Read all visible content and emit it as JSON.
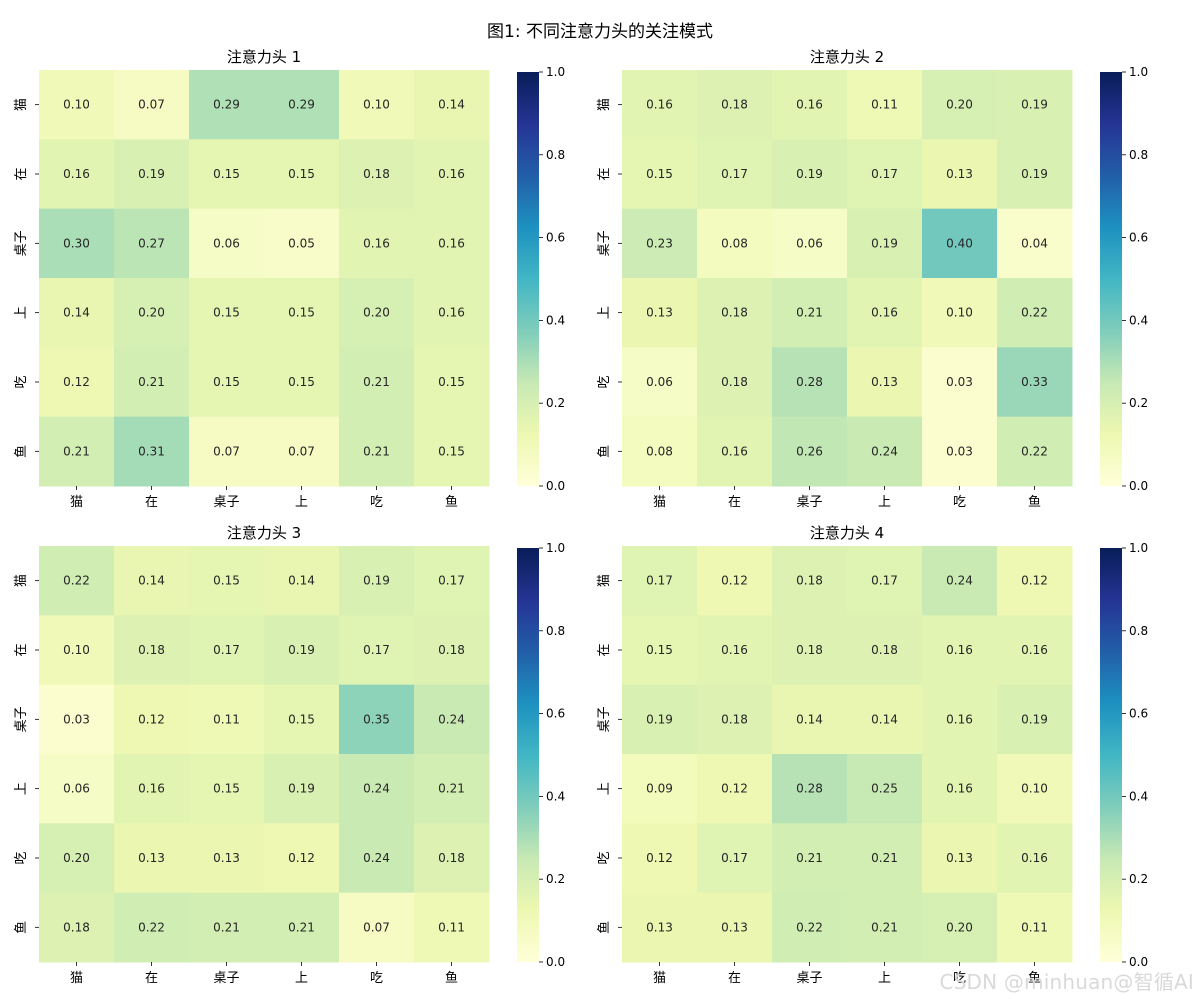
{
  "figure_title": "图1: 不同注意力头的关注模式",
  "watermark": "CSDN @minhuan@智循AI",
  "colormap": {
    "name": "YlGnBu",
    "stops": [
      "#ffffd9",
      "#edf8b1",
      "#c7e9b4",
      "#7fcdbb",
      "#41b6c4",
      "#1d91c0",
      "#225ea8",
      "#253494",
      "#081d58"
    ]
  },
  "chart_data": [
    {
      "type": "heatmap",
      "title": "注意力头 1",
      "x_labels": [
        "猫",
        "在",
        "桌子",
        "上",
        "吃",
        "鱼"
      ],
      "y_labels": [
        "猫",
        "在",
        "桌子",
        "上",
        "吃",
        "鱼"
      ],
      "vmin": 0,
      "vmax": 1,
      "colorbar_ticks": [
        "0.0",
        "0.2",
        "0.4",
        "0.6",
        "0.8",
        "1.0"
      ],
      "values": [
        [
          0.1,
          0.07,
          0.29,
          0.29,
          0.1,
          0.14
        ],
        [
          0.16,
          0.19,
          0.15,
          0.15,
          0.18,
          0.16
        ],
        [
          0.3,
          0.27,
          0.06,
          0.05,
          0.16,
          0.16
        ],
        [
          0.14,
          0.2,
          0.15,
          0.15,
          0.2,
          0.16
        ],
        [
          0.12,
          0.21,
          0.15,
          0.15,
          0.21,
          0.15
        ],
        [
          0.21,
          0.31,
          0.07,
          0.07,
          0.21,
          0.15
        ]
      ]
    },
    {
      "type": "heatmap",
      "title": "注意力头 2",
      "x_labels": [
        "猫",
        "在",
        "桌子",
        "上",
        "吃",
        "鱼"
      ],
      "y_labels": [
        "猫",
        "在",
        "桌子",
        "上",
        "吃",
        "鱼"
      ],
      "vmin": 0,
      "vmax": 1,
      "colorbar_ticks": [
        "0.0",
        "0.2",
        "0.4",
        "0.6",
        "0.8",
        "1.0"
      ],
      "values": [
        [
          0.16,
          0.18,
          0.16,
          0.11,
          0.2,
          0.19
        ],
        [
          0.15,
          0.17,
          0.19,
          0.17,
          0.13,
          0.19
        ],
        [
          0.23,
          0.08,
          0.06,
          0.19,
          0.4,
          0.04
        ],
        [
          0.13,
          0.18,
          0.21,
          0.16,
          0.1,
          0.22
        ],
        [
          0.06,
          0.18,
          0.28,
          0.13,
          0.03,
          0.33
        ],
        [
          0.08,
          0.16,
          0.26,
          0.24,
          0.03,
          0.22
        ]
      ]
    },
    {
      "type": "heatmap",
      "title": "注意力头 3",
      "x_labels": [
        "猫",
        "在",
        "桌子",
        "上",
        "吃",
        "鱼"
      ],
      "y_labels": [
        "猫",
        "在",
        "桌子",
        "上",
        "吃",
        "鱼"
      ],
      "vmin": 0,
      "vmax": 1,
      "colorbar_ticks": [
        "0.0",
        "0.2",
        "0.4",
        "0.6",
        "0.8",
        "1.0"
      ],
      "values": [
        [
          0.22,
          0.14,
          0.15,
          0.14,
          0.19,
          0.17
        ],
        [
          0.1,
          0.18,
          0.17,
          0.19,
          0.17,
          0.18
        ],
        [
          0.03,
          0.12,
          0.11,
          0.15,
          0.35,
          0.24
        ],
        [
          0.06,
          0.16,
          0.15,
          0.19,
          0.24,
          0.21
        ],
        [
          0.2,
          0.13,
          0.13,
          0.12,
          0.24,
          0.18
        ],
        [
          0.18,
          0.22,
          0.21,
          0.21,
          0.07,
          0.11
        ]
      ]
    },
    {
      "type": "heatmap",
      "title": "注意力头 4",
      "x_labels": [
        "猫",
        "在",
        "桌子",
        "上",
        "吃",
        "鱼"
      ],
      "y_labels": [
        "猫",
        "在",
        "桌子",
        "上",
        "吃",
        "鱼"
      ],
      "vmin": 0,
      "vmax": 1,
      "colorbar_ticks": [
        "0.0",
        "0.2",
        "0.4",
        "0.6",
        "0.8",
        "1.0"
      ],
      "values": [
        [
          0.17,
          0.12,
          0.18,
          0.17,
          0.24,
          0.12
        ],
        [
          0.15,
          0.16,
          0.18,
          0.18,
          0.16,
          0.16
        ],
        [
          0.19,
          0.18,
          0.14,
          0.14,
          0.16,
          0.19
        ],
        [
          0.09,
          0.12,
          0.28,
          0.25,
          0.16,
          0.1
        ],
        [
          0.12,
          0.17,
          0.21,
          0.21,
          0.13,
          0.16
        ],
        [
          0.13,
          0.13,
          0.22,
          0.21,
          0.2,
          0.11
        ]
      ]
    }
  ]
}
